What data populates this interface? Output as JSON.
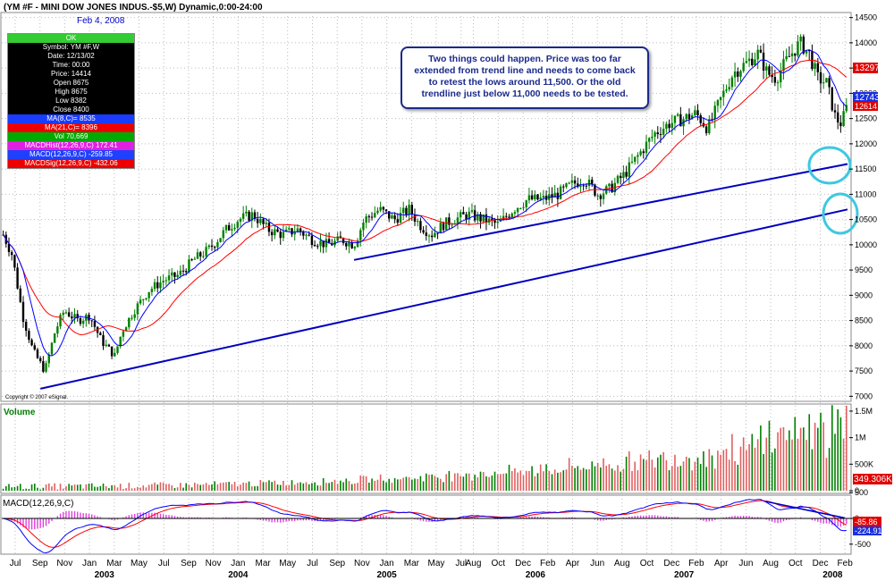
{
  "header": {
    "title": "(YM #F - MINI DOW JONES INDUS.-$5,W) Dynamic,0:00-24:00",
    "date": "Feb 4, 2008"
  },
  "info_panel": {
    "status": "OK",
    "rows": [
      "Symbol: YM #F,W",
      "Date: 12/13/02",
      "Time: 00:00",
      "Price: 14414",
      "Open 8675",
      "High 8675",
      "Low 8382",
      "Close 8400"
    ],
    "ma8": "MA(8,C)= 8535",
    "ma21": "MA(21,C)= 8396",
    "vol": "Vol 70,669",
    "macd_hist": "MACDHist(12,26,9,C) 172.41",
    "macd": "MACD(12,26,9,C) -259.85",
    "macd_sig": "MACDSig(12,26,9,C) -432.06"
  },
  "annotation": {
    "lines": [
      "Two things could happen. Price was too far",
      "extended from trend line and needs to come back",
      "to retest the lows around 11,500. Or the old",
      "trendline just below 11,000 needs to be tested."
    ]
  },
  "copyright": "Copyright © 2007 eSignal.",
  "price_labels": {
    "ma21": "13297",
    "last": "12743",
    "ma8": "12614"
  },
  "volume_label": "Volume",
  "volume_last": "349.306K",
  "macd_label": "MACD(12,26,9,C)",
  "macd_labels": {
    "macd": "-85.86",
    "signal": "-224.91"
  },
  "colors": {
    "up": "#008000",
    "down": "#000000",
    "ma_fast": "#0000ff",
    "ma_slow": "#ff0000",
    "trendline": "#0000c0",
    "highlight": "#3ec8e0",
    "volume": "#e06060"
  },
  "chart_data": {
    "type": "candlestick",
    "price_axis": {
      "min": 7000,
      "max": 14500,
      "ticks": [
        "7000",
        "7500",
        "8000",
        "8500",
        "9000",
        "9500",
        "10000",
        "10500",
        "11000",
        "11500",
        "12000",
        "12500",
        "13000",
        "13500",
        "14000",
        "14500"
      ]
    },
    "volume_axis": {
      "ticks": [
        "0",
        "500K",
        "1M",
        "1.5M"
      ]
    },
    "macd_axis": {
      "ticks": [
        "-500",
        "0",
        "500"
      ]
    },
    "x_axis": {
      "months": [
        {
          "label": "Jul",
          "t": 2002.5
        },
        {
          "label": "Sep",
          "t": 2002.667
        },
        {
          "label": "Nov",
          "t": 2002.833
        },
        {
          "label": "Jan",
          "t": 2003.0
        },
        {
          "label": "Mar",
          "t": 2003.167
        },
        {
          "label": "May",
          "t": 2003.333
        },
        {
          "label": "Jul",
          "t": 2003.5
        },
        {
          "label": "Sep",
          "t": 2003.667
        },
        {
          "label": "Nov",
          "t": 2003.833
        },
        {
          "label": "Jan",
          "t": 2004.0
        },
        {
          "label": "Mar",
          "t": 2004.167
        },
        {
          "label": "May",
          "t": 2004.333
        },
        {
          "label": "Jul",
          "t": 2004.5
        },
        {
          "label": "Sep",
          "t": 2004.667
        },
        {
          "label": "Nov",
          "t": 2004.833
        },
        {
          "label": "Jan",
          "t": 2005.0
        },
        {
          "label": "Mar",
          "t": 2005.167
        },
        {
          "label": "May",
          "t": 2005.333
        },
        {
          "label": "Jul",
          "t": 2005.5
        },
        {
          "label": "Aug",
          "t": 2005.583
        },
        {
          "label": "Oct",
          "t": 2005.75
        },
        {
          "label": "Dec",
          "t": 2005.917
        },
        {
          "label": "Feb",
          "t": 2006.083
        },
        {
          "label": "Apr",
          "t": 2006.25
        },
        {
          "label": "Jun",
          "t": 2006.417
        },
        {
          "label": "Aug",
          "t": 2006.583
        },
        {
          "label": "Oct",
          "t": 2006.75
        },
        {
          "label": "Dec",
          "t": 2006.917
        },
        {
          "label": "Feb",
          "t": 2007.083
        },
        {
          "label": "Apr",
          "t": 2007.25
        },
        {
          "label": "Jun",
          "t": 2007.417
        },
        {
          "label": "Aug",
          "t": 2007.583
        },
        {
          "label": "Oct",
          "t": 2007.75
        },
        {
          "label": "Dec",
          "t": 2007.917
        },
        {
          "label": "Feb",
          "t": 2008.083
        }
      ],
      "years": [
        {
          "label": "2003",
          "t": 2003.1
        },
        {
          "label": "2004",
          "t": 2004.0
        },
        {
          "label": "2005",
          "t": 2005.0
        },
        {
          "label": "2006",
          "t": 2006.0
        },
        {
          "label": "2007",
          "t": 2007.0
        },
        {
          "label": "2008",
          "t": 2008.0
        }
      ],
      "range": [
        2002.41,
        2008.1
      ]
    },
    "price_path": [
      [
        2002.42,
        10200
      ],
      [
        2002.48,
        9800
      ],
      [
        2002.55,
        8600
      ],
      [
        2002.62,
        7900
      ],
      [
        2002.7,
        7500
      ],
      [
        2002.77,
        8300
      ],
      [
        2002.83,
        8700
      ],
      [
        2002.92,
        8500
      ],
      [
        2003.0,
        8600
      ],
      [
        2003.08,
        8100
      ],
      [
        2003.17,
        7800
      ],
      [
        2003.22,
        8300
      ],
      [
        2003.3,
        8700
      ],
      [
        2003.4,
        9100
      ],
      [
        2003.5,
        9300
      ],
      [
        2003.6,
        9400
      ],
      [
        2003.7,
        9700
      ],
      [
        2003.8,
        9900
      ],
      [
        2003.92,
        10300
      ],
      [
        2004.0,
        10500
      ],
      [
        2004.1,
        10600
      ],
      [
        2004.2,
        10300
      ],
      [
        2004.3,
        10200
      ],
      [
        2004.4,
        10300
      ],
      [
        2004.5,
        10100
      ],
      [
        2004.6,
        10000
      ],
      [
        2004.7,
        10100
      ],
      [
        2004.78,
        10000
      ],
      [
        2004.85,
        10500
      ],
      [
        2004.95,
        10700
      ],
      [
        2005.05,
        10500
      ],
      [
        2005.15,
        10700
      ],
      [
        2005.22,
        10400
      ],
      [
        2005.3,
        10200
      ],
      [
        2005.38,
        10400
      ],
      [
        2005.45,
        10500
      ],
      [
        2005.55,
        10600
      ],
      [
        2005.65,
        10500
      ],
      [
        2005.75,
        10400
      ],
      [
        2005.85,
        10700
      ],
      [
        2005.95,
        10900
      ],
      [
        2006.05,
        10900
      ],
      [
        2006.15,
        11000
      ],
      [
        2006.25,
        11200
      ],
      [
        2006.33,
        11300
      ],
      [
        2006.42,
        11000
      ],
      [
        2006.5,
        11100
      ],
      [
        2006.6,
        11400
      ],
      [
        2006.7,
        11800
      ],
      [
        2006.8,
        12200
      ],
      [
        2006.9,
        12400
      ],
      [
        2007.0,
        12500
      ],
      [
        2007.08,
        12600
      ],
      [
        2007.16,
        12300
      ],
      [
        2007.25,
        12900
      ],
      [
        2007.33,
        13400
      ],
      [
        2007.42,
        13600
      ],
      [
        2007.5,
        13800
      ],
      [
        2007.56,
        13400
      ],
      [
        2007.62,
        13300
      ],
      [
        2007.7,
        13700
      ],
      [
        2007.78,
        14000
      ],
      [
        2007.84,
        13800
      ],
      [
        2007.9,
        13300
      ],
      [
        2007.96,
        13200
      ],
      [
        2008.02,
        12500
      ],
      [
        2008.06,
        12400
      ],
      [
        2008.09,
        12700
      ]
    ],
    "trendlines": [
      {
        "points": [
          [
            2002.67,
            7150
          ],
          [
            2008.1,
            10700
          ]
        ]
      },
      {
        "points": [
          [
            2004.78,
            9700
          ],
          [
            2008.1,
            11600
          ]
        ]
      }
    ]
  }
}
